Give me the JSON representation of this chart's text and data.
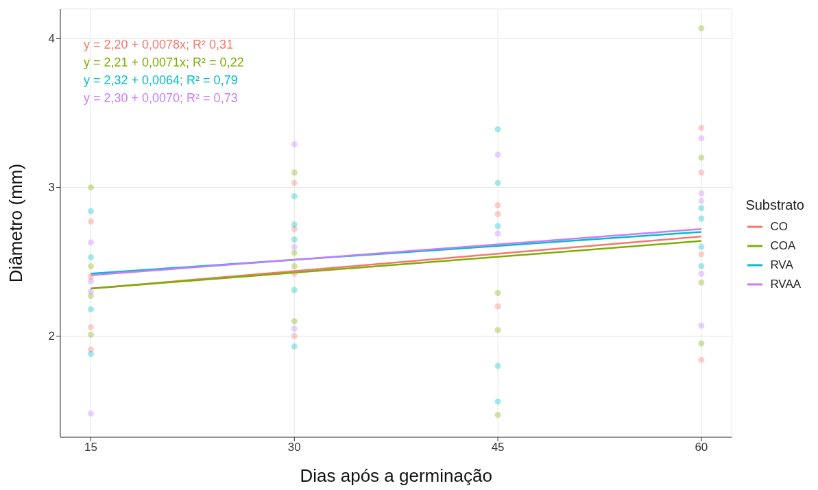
{
  "chart_data": {
    "type": "scatter",
    "xlabel": "Dias após a germinação",
    "ylabel": "Diâmetro (mm)",
    "legend_title": "Substrato",
    "xlim": [
      12.75,
      62.25
    ],
    "xticks": [
      15,
      30,
      45,
      60
    ],
    "ylim": [
      1.32,
      4.2
    ],
    "yticks": [
      2,
      3,
      4
    ],
    "grid": true,
    "legend": "right",
    "annotations": [
      "y = 2,20 + 0,0078x; R² 0,31",
      "y = 2,21 + 0,0071x; R² = 0,22",
      "y = 2,32 + 0,0064; R² = 0,79",
      "y = 2,30 + 0,0070; R² = 0,73"
    ],
    "series": [
      {
        "marker": "circle",
        "color": "#f8766d",
        "x": [
          15,
          15,
          15,
          15,
          30,
          30,
          30,
          30,
          45,
          45,
          45,
          60,
          60,
          60,
          60
        ],
        "values": [
          2.77,
          2.4,
          2.06,
          1.91,
          2.72,
          2.42,
          2.0,
          3.03,
          2.88,
          2.82,
          2.2,
          3.1,
          2.55,
          1.84,
          3.4
        ]
      },
      {
        "marker": "circle",
        "color": "#7cae00",
        "x": [
          15,
          15,
          15,
          15,
          30,
          30,
          30,
          30,
          45,
          45,
          45,
          60,
          60,
          60,
          60
        ],
        "values": [
          2.47,
          2.27,
          2.01,
          3.0,
          3.1,
          2.47,
          2.1,
          2.56,
          2.29,
          2.04,
          1.47,
          4.07,
          3.2,
          2.36,
          1.95
        ]
      },
      {
        "marker": "circle",
        "color": "#00bfc4",
        "x": [
          15,
          15,
          15,
          15,
          30,
          30,
          30,
          30,
          30,
          45,
          45,
          45,
          45,
          45,
          60,
          60,
          60,
          60
        ],
        "values": [
          2.84,
          2.53,
          2.18,
          1.88,
          2.94,
          2.75,
          2.65,
          2.31,
          1.93,
          3.39,
          3.03,
          2.74,
          1.8,
          1.56,
          2.86,
          2.79,
          2.6,
          2.47
        ]
      },
      {
        "marker": "circle",
        "color": "#c77cff",
        "x": [
          15,
          15,
          15,
          15,
          30,
          30,
          30,
          45,
          45,
          60,
          60,
          60,
          60,
          60
        ],
        "values": [
          2.63,
          2.37,
          2.3,
          1.48,
          3.29,
          2.6,
          2.05,
          3.22,
          2.69,
          3.33,
          2.96,
          2.91,
          2.42,
          2.07
        ]
      },
      {
        "type": "line",
        "marker": "none",
        "name": "CO",
        "color": "#f8766d",
        "x": [
          15,
          60
        ],
        "values": [
          2.32,
          2.67
        ]
      },
      {
        "type": "line",
        "marker": "none",
        "name": "COA",
        "color": "#7cae00",
        "x": [
          15,
          60
        ],
        "values": [
          2.32,
          2.64
        ]
      },
      {
        "type": "line",
        "marker": "none",
        "name": "RVA",
        "color": "#00bfc4",
        "x": [
          15,
          60
        ],
        "values": [
          2.42,
          2.7
        ]
      },
      {
        "type": "line",
        "marker": "none",
        "name": "RVAA",
        "color": "#c77cff",
        "x": [
          15,
          60
        ],
        "values": [
          2.41,
          2.72
        ]
      }
    ]
  }
}
